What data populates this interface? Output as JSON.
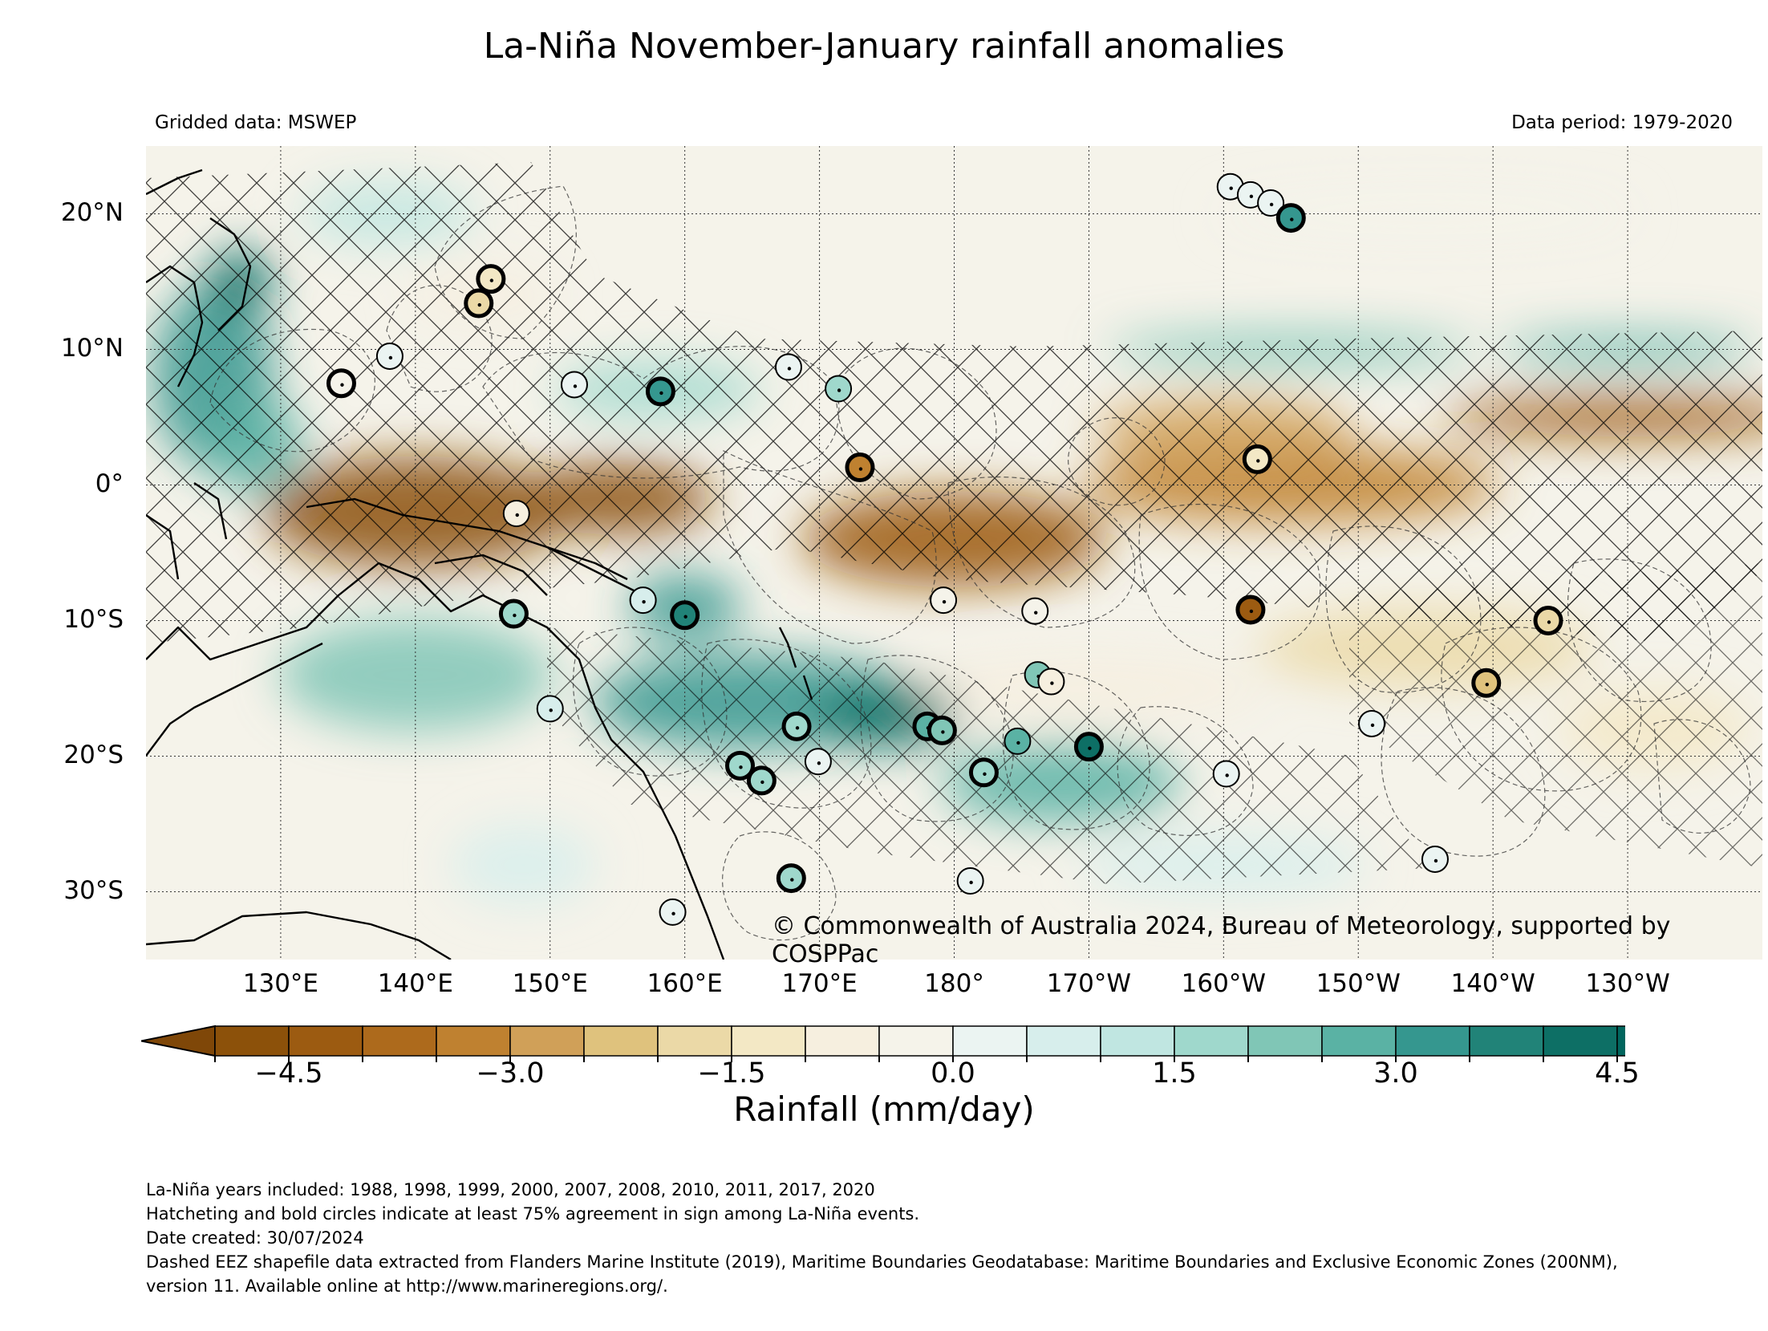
{
  "title": "La-Niña November-January rainfall anomalies",
  "subtitle_left": "Gridded data: MSWEP",
  "subtitle_right": "Data period: 1979-2020",
  "copyright": "© Commonwealth of Australia 2024, Bureau of Meteorology, supported by COSPPac",
  "map": {
    "lon_range": [
      120,
      240
    ],
    "lat_range": [
      -35,
      25
    ],
    "y_ticks": [
      {
        "lat": 20,
        "label": "20°N"
      },
      {
        "lat": 10,
        "label": "10°N"
      },
      {
        "lat": 0,
        "label": "0°"
      },
      {
        "lat": -10,
        "label": "10°S"
      },
      {
        "lat": -20,
        "label": "20°S"
      },
      {
        "lat": -30,
        "label": "30°S"
      }
    ],
    "x_ticks": [
      {
        "lon": 130,
        "label": "130°E"
      },
      {
        "lon": 140,
        "label": "140°E"
      },
      {
        "lon": 150,
        "label": "150°E"
      },
      {
        "lon": 160,
        "label": "160°E"
      },
      {
        "lon": 170,
        "label": "170°E"
      },
      {
        "lon": 180,
        "label": "180°"
      },
      {
        "lon": 190,
        "label": "170°W"
      },
      {
        "lon": 200,
        "label": "160°W"
      },
      {
        "lon": 210,
        "label": "150°W"
      },
      {
        "lon": 220,
        "label": "140°W"
      },
      {
        "lon": 230,
        "label": "130°W"
      }
    ],
    "legend_note": "Hatching = at least 75% agreement in sign among La-Niña events",
    "station_circles": [
      {
        "lon": 134.5,
        "lat": 7.5,
        "anomaly": -0.5,
        "bold": true
      },
      {
        "lon": 138.1,
        "lat": 9.5,
        "anomaly": 0.0,
        "bold": false
      },
      {
        "lon": 145.6,
        "lat": 15.2,
        "anomaly": -1.5,
        "bold": true
      },
      {
        "lon": 144.7,
        "lat": 13.4,
        "anomaly": -1.8,
        "bold": true
      },
      {
        "lon": 151.8,
        "lat": 7.4,
        "anomaly": 0.3,
        "bold": false
      },
      {
        "lon": 158.2,
        "lat": 6.9,
        "anomaly": 3.0,
        "bold": true
      },
      {
        "lon": 167.7,
        "lat": 8.7,
        "anomaly": 0.3,
        "bold": false
      },
      {
        "lon": 171.4,
        "lat": 7.1,
        "anomaly": 1.5,
        "bold": false
      },
      {
        "lon": 173.0,
        "lat": 1.3,
        "anomaly": -3.5,
        "bold": true
      },
      {
        "lon": 202.5,
        "lat": 1.9,
        "anomaly": -1.5,
        "bold": true
      },
      {
        "lon": 200.5,
        "lat": 22.0,
        "anomaly": 0.2,
        "bold": false
      },
      {
        "lon": 202.0,
        "lat": 21.4,
        "anomaly": 0.3,
        "bold": false
      },
      {
        "lon": 203.5,
        "lat": 20.8,
        "anomaly": 0.3,
        "bold": false
      },
      {
        "lon": 205.0,
        "lat": 19.7,
        "anomaly": 3.0,
        "bold": true
      },
      {
        "lon": 147.5,
        "lat": -2.1,
        "anomaly": -0.8,
        "bold": false
      },
      {
        "lon": 147.3,
        "lat": -9.5,
        "anomaly": 1.5,
        "bold": true
      },
      {
        "lon": 156.9,
        "lat": -8.5,
        "anomaly": 0.8,
        "bold": false
      },
      {
        "lon": 160.0,
        "lat": -9.6,
        "anomaly": 3.5,
        "bold": true
      },
      {
        "lon": 150.0,
        "lat": -16.5,
        "anomaly": 0.8,
        "bold": false
      },
      {
        "lon": 179.2,
        "lat": -8.5,
        "anomaly": -0.5,
        "bold": false
      },
      {
        "lon": 186.0,
        "lat": -9.3,
        "anomaly": -0.3,
        "bold": false
      },
      {
        "lon": 202.0,
        "lat": -9.2,
        "anomaly": -4.5,
        "bold": true
      },
      {
        "lon": 224.1,
        "lat": -10.0,
        "anomaly": -1.8,
        "bold": true
      },
      {
        "lon": 219.5,
        "lat": -14.6,
        "anomaly": -2.5,
        "bold": true
      },
      {
        "lon": 211.0,
        "lat": -17.6,
        "anomaly": 0.0,
        "bold": false
      },
      {
        "lon": 186.2,
        "lat": -14.0,
        "anomaly": 2.0,
        "bold": false
      },
      {
        "lon": 187.2,
        "lat": -14.5,
        "anomaly": -0.8,
        "bold": false
      },
      {
        "lon": 168.3,
        "lat": -17.8,
        "anomaly": 1.8,
        "bold": true
      },
      {
        "lon": 178.0,
        "lat": -17.8,
        "anomaly": 2.5,
        "bold": true
      },
      {
        "lon": 179.1,
        "lat": -18.1,
        "anomaly": 2.2,
        "bold": true
      },
      {
        "lon": 184.7,
        "lat": -18.9,
        "anomaly": 2.5,
        "bold": false
      },
      {
        "lon": 190.0,
        "lat": -19.3,
        "anomaly": 4.0,
        "bold": true
      },
      {
        "lon": 169.9,
        "lat": -20.4,
        "anomaly": 0.3,
        "bold": false
      },
      {
        "lon": 164.1,
        "lat": -20.7,
        "anomaly": 1.5,
        "bold": true
      },
      {
        "lon": 165.7,
        "lat": -21.8,
        "anomaly": 1.8,
        "bold": true
      },
      {
        "lon": 182.2,
        "lat": -21.2,
        "anomaly": 1.5,
        "bold": true
      },
      {
        "lon": 200.2,
        "lat": -21.3,
        "anomaly": 0.3,
        "bold": false
      },
      {
        "lon": 167.9,
        "lat": -29.0,
        "anomaly": 1.5,
        "bold": true
      },
      {
        "lon": 181.2,
        "lat": -29.2,
        "anomaly": 0.3,
        "bold": false
      },
      {
        "lon": 159.1,
        "lat": -31.5,
        "anomaly": 0.3,
        "bold": false
      },
      {
        "lon": 215.7,
        "lat": -27.6,
        "anomaly": 0.0,
        "bold": false
      }
    ]
  },
  "colorbar": {
    "title": "Rainfall (mm/day)",
    "boundaries": [
      -5,
      -4.5,
      -4,
      -3.5,
      -3,
      -2.5,
      -2,
      -1.5,
      -1,
      -0.5,
      0,
      0.5,
      1,
      1.5,
      2,
      2.5,
      3,
      3.5,
      4,
      4.5,
      5
    ],
    "colors": [
      "#8c510a",
      "#9c5b11",
      "#ad6a1c",
      "#bf8130",
      "#d0a058",
      "#dfc27d",
      "#ebd9a7",
      "#f3e8c5",
      "#f6efdf",
      "#f5f3ea",
      "#ebf4f2",
      "#d7eeec",
      "#c0e6e1",
      "#9fd8cc",
      "#80c6b6",
      "#5ab2a4",
      "#35978f",
      "#218378",
      "#0d6f65",
      "#01665e"
    ],
    "extend_low": "#7f4708",
    "extend_high": "#004f46",
    "tick_labels": [
      {
        "value": -4.5,
        "label": "−4.5"
      },
      {
        "value": -3.0,
        "label": "−3.0"
      },
      {
        "value": -1.5,
        "label": "−1.5"
      },
      {
        "value": 0.0,
        "label": "0.0"
      },
      {
        "value": 1.5,
        "label": "1.5"
      },
      {
        "value": 3.0,
        "label": "3.0"
      },
      {
        "value": 4.5,
        "label": "4.5"
      }
    ]
  },
  "notes": [
    "La-Niña years included: 1988, 1998, 1999, 2000, 2007, 2008, 2010, 2011, 2017, 2020",
    "Hatcheting and bold circles indicate at least 75% agreement in sign among La-Niña events.",
    "Date created: 30/07/2024",
    "Dashed EEZ shapefile data extracted from Flanders Marine Institute (2019), Maritime Boundaries Geodatabase: Maritime Boundaries and Exclusive Economic Zones (200NM),",
    "version 11. Available online at http://www.marineregions.org/."
  ]
}
